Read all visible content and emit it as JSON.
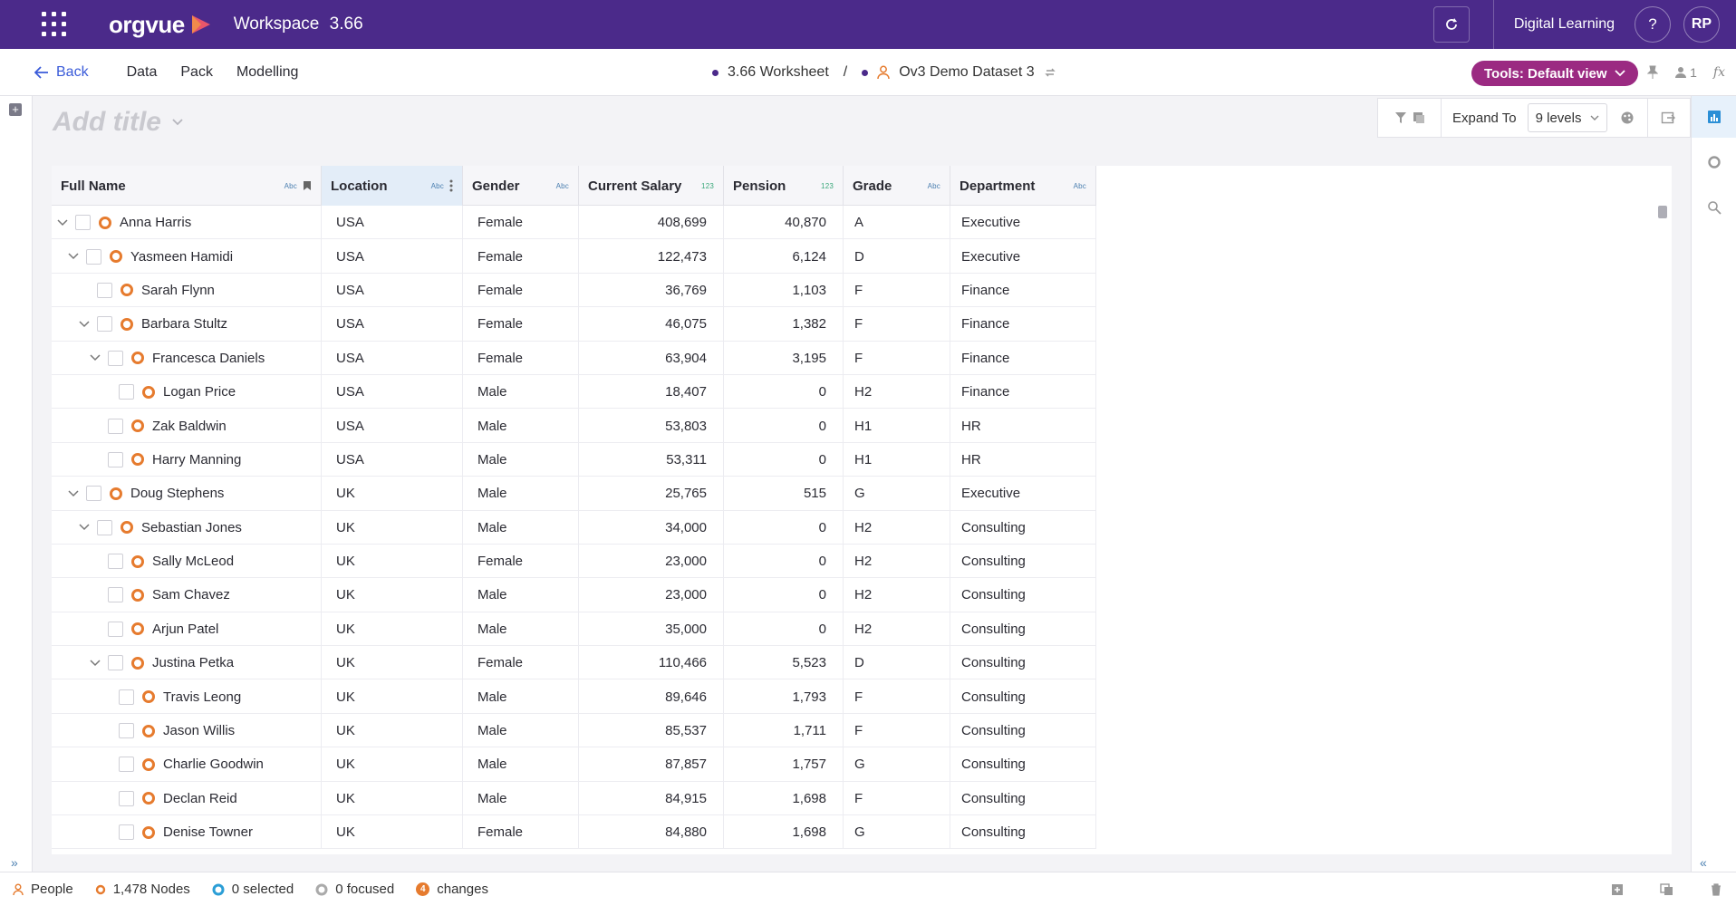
{
  "app": {
    "logo_text": "orgvue",
    "workspace_name": "Workspace",
    "workspace_version": "3.66",
    "user_label": "Digital Learning",
    "help_label": "?",
    "avatar_initials": "RP"
  },
  "nav": {
    "back_label": "Back",
    "items": [
      "Data",
      "Pack",
      "Modelling"
    ],
    "worksheet": "3.66 Worksheet",
    "separator": "/",
    "dataset": "Ov3 Demo Dataset 3",
    "tools_label": "Tools: Default view",
    "count_badge": "1",
    "fx_label": "fx"
  },
  "title_area": {
    "placeholder": "Add title",
    "expand_label": "Expand To",
    "levels_value": "9 levels"
  },
  "table": {
    "columns": [
      {
        "label": "Full Name",
        "type": "Abc"
      },
      {
        "label": "Location",
        "type": "Abc"
      },
      {
        "label": "Gender",
        "type": "Abc"
      },
      {
        "label": "Current Salary",
        "type": "123"
      },
      {
        "label": "Pension",
        "type": "123"
      },
      {
        "label": "Grade",
        "type": "Abc"
      },
      {
        "label": "Department",
        "type": "Abc"
      }
    ],
    "rows": [
      {
        "name": "Anna Harris",
        "depth": 0,
        "expandable": true,
        "location": "USA",
        "gender": "Female",
        "salary": "408,699",
        "pension": "40,870",
        "grade": "A",
        "department": "Executive"
      },
      {
        "name": "Yasmeen Hamidi",
        "depth": 1,
        "expandable": true,
        "location": "USA",
        "gender": "Female",
        "salary": "122,473",
        "pension": "6,124",
        "grade": "D",
        "department": "Executive"
      },
      {
        "name": "Sarah Flynn",
        "depth": 2,
        "expandable": false,
        "location": "USA",
        "gender": "Female",
        "salary": "36,769",
        "pension": "1,103",
        "grade": "F",
        "department": "Finance"
      },
      {
        "name": "Barbara Stultz",
        "depth": 2,
        "expandable": true,
        "location": "USA",
        "gender": "Female",
        "salary": "46,075",
        "pension": "1,382",
        "grade": "F",
        "department": "Finance"
      },
      {
        "name": "Francesca Daniels",
        "depth": 3,
        "expandable": true,
        "location": "USA",
        "gender": "Female",
        "salary": "63,904",
        "pension": "3,195",
        "grade": "F",
        "department": "Finance"
      },
      {
        "name": "Logan Price",
        "depth": 4,
        "expandable": false,
        "location": "USA",
        "gender": "Male",
        "salary": "18,407",
        "pension": "0",
        "grade": "H2",
        "department": "Finance"
      },
      {
        "name": "Zak Baldwin",
        "depth": 3,
        "expandable": false,
        "location": "USA",
        "gender": "Male",
        "salary": "53,803",
        "pension": "0",
        "grade": "H1",
        "department": "HR"
      },
      {
        "name": "Harry Manning",
        "depth": 3,
        "expandable": false,
        "location": "USA",
        "gender": "Male",
        "salary": "53,311",
        "pension": "0",
        "grade": "H1",
        "department": "HR"
      },
      {
        "name": "Doug Stephens",
        "depth": 1,
        "expandable": true,
        "location": "UK",
        "gender": "Male",
        "salary": "25,765",
        "pension": "515",
        "grade": "G",
        "department": "Executive"
      },
      {
        "name": "Sebastian Jones",
        "depth": 2,
        "expandable": true,
        "location": "UK",
        "gender": "Male",
        "salary": "34,000",
        "pension": "0",
        "grade": "H2",
        "department": "Consulting"
      },
      {
        "name": "Sally McLeod",
        "depth": 3,
        "expandable": false,
        "location": "UK",
        "gender": "Female",
        "salary": "23,000",
        "pension": "0",
        "grade": "H2",
        "department": "Consulting"
      },
      {
        "name": "Sam Chavez",
        "depth": 3,
        "expandable": false,
        "location": "UK",
        "gender": "Male",
        "salary": "23,000",
        "pension": "0",
        "grade": "H2",
        "department": "Consulting"
      },
      {
        "name": "Arjun Patel",
        "depth": 3,
        "expandable": false,
        "location": "UK",
        "gender": "Male",
        "salary": "35,000",
        "pension": "0",
        "grade": "H2",
        "department": "Consulting"
      },
      {
        "name": "Justina Petka",
        "depth": 3,
        "expandable": true,
        "location": "UK",
        "gender": "Female",
        "salary": "110,466",
        "pension": "5,523",
        "grade": "D",
        "department": "Consulting"
      },
      {
        "name": "Travis Leong",
        "depth": 4,
        "expandable": false,
        "location": "UK",
        "gender": "Male",
        "salary": "89,646",
        "pension": "1,793",
        "grade": "F",
        "department": "Consulting"
      },
      {
        "name": "Jason Willis",
        "depth": 4,
        "expandable": false,
        "location": "UK",
        "gender": "Male",
        "salary": "85,537",
        "pension": "1,711",
        "grade": "F",
        "department": "Consulting"
      },
      {
        "name": "Charlie Goodwin",
        "depth": 4,
        "expandable": false,
        "location": "UK",
        "gender": "Male",
        "salary": "87,857",
        "pension": "1,757",
        "grade": "G",
        "department": "Consulting"
      },
      {
        "name": "Declan Reid",
        "depth": 4,
        "expandable": false,
        "location": "UK",
        "gender": "Male",
        "salary": "84,915",
        "pension": "1,698",
        "grade": "F",
        "department": "Consulting"
      },
      {
        "name": "Denise Towner",
        "depth": 4,
        "expandable": false,
        "location": "UK",
        "gender": "Female",
        "salary": "84,880",
        "pension": "1,698",
        "grade": "G",
        "department": "Consulting"
      }
    ]
  },
  "footer": {
    "dataset_label": "People",
    "nodes": "1,478 Nodes",
    "selected": "0 selected",
    "focused": "0 focused",
    "changes_count": "4",
    "changes_label": "changes"
  },
  "colors": {
    "topbar": "#4b2a8a",
    "tools_pill": "#9b2a82",
    "node_ring": "#e67b2e",
    "link": "#3a5bd9",
    "active_header": "#e3edf8"
  }
}
